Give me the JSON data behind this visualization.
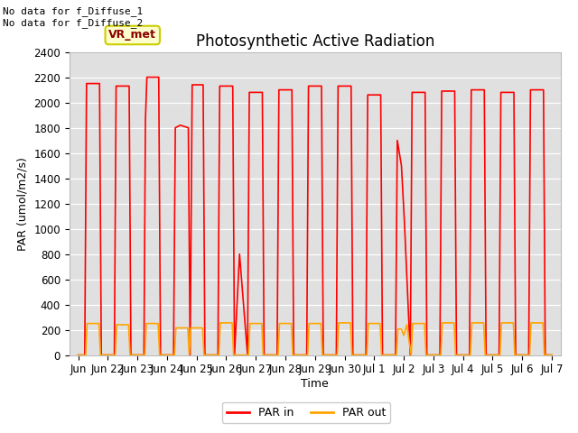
{
  "title": "Photosynthetic Active Radiation",
  "ylabel": "PAR (umol/m2/s)",
  "xlabel": "Time",
  "ylim": [
    0,
    2400
  ],
  "annotation_text": "No data for f_Diffuse_1\nNo data for f_Diffuse_2",
  "box_label": "VR_met",
  "legend_labels": [
    "PAR in",
    "PAR out"
  ],
  "par_in_color": "#ff0000",
  "par_out_color": "#ffa500",
  "background_color": "#e0e0e0",
  "title_fontsize": 12,
  "axis_fontsize": 9,
  "tick_fontsize": 8.5,
  "par_in_data": [
    [
      0,
      0
    ],
    [
      0.0,
      0
    ],
    [
      0.22,
      0
    ],
    [
      0.28,
      2150
    ],
    [
      0.72,
      2150
    ],
    [
      0.78,
      0
    ],
    [
      1.22,
      0
    ],
    [
      1.28,
      2130
    ],
    [
      1.72,
      2130
    ],
    [
      1.78,
      0
    ],
    [
      2.22,
      0
    ],
    [
      2.27,
      1860
    ],
    [
      2.32,
      2200
    ],
    [
      2.72,
      2200
    ],
    [
      2.78,
      0
    ],
    [
      3.22,
      0
    ],
    [
      3.28,
      1800
    ],
    [
      3.45,
      1820
    ],
    [
      3.72,
      1800
    ],
    [
      3.78,
      0
    ],
    [
      3.85,
      2140
    ],
    [
      4.22,
      2140
    ],
    [
      4.28,
      0
    ],
    [
      4.72,
      0
    ],
    [
      4.78,
      2130
    ],
    [
      5.22,
      2130
    ],
    [
      5.28,
      0
    ],
    [
      5.45,
      800
    ],
    [
      5.72,
      0
    ],
    [
      5.78,
      2080
    ],
    [
      6.22,
      2080
    ],
    [
      6.28,
      0
    ],
    [
      6.72,
      0
    ],
    [
      6.78,
      2100
    ],
    [
      7.22,
      2100
    ],
    [
      7.28,
      0
    ],
    [
      7.72,
      0
    ],
    [
      7.78,
      2130
    ],
    [
      8.22,
      2130
    ],
    [
      8.28,
      0
    ],
    [
      8.72,
      0
    ],
    [
      8.78,
      2130
    ],
    [
      9.22,
      2130
    ],
    [
      9.28,
      0
    ],
    [
      9.72,
      0
    ],
    [
      9.78,
      2060
    ],
    [
      10.22,
      2060
    ],
    [
      10.28,
      0
    ],
    [
      10.72,
      0
    ],
    [
      10.78,
      1700
    ],
    [
      10.92,
      1500
    ],
    [
      11.02,
      1060
    ],
    [
      11.22,
      0
    ],
    [
      11.28,
      2080
    ],
    [
      11.72,
      2080
    ],
    [
      11.78,
      0
    ],
    [
      12.22,
      0
    ],
    [
      12.28,
      2090
    ],
    [
      12.72,
      2090
    ],
    [
      12.78,
      0
    ],
    [
      13.22,
      0
    ],
    [
      13.28,
      2100
    ],
    [
      13.72,
      2100
    ],
    [
      13.78,
      0
    ],
    [
      14.22,
      0
    ],
    [
      14.28,
      2080
    ],
    [
      14.72,
      2080
    ],
    [
      14.78,
      0
    ],
    [
      15.22,
      0
    ],
    [
      15.28,
      2100
    ],
    [
      15.72,
      2100
    ],
    [
      15.78,
      0
    ],
    [
      16.0,
      0
    ]
  ],
  "par_out_data": [
    [
      0,
      0
    ],
    [
      0.25,
      0
    ],
    [
      0.3,
      250
    ],
    [
      0.7,
      250
    ],
    [
      0.75,
      0
    ],
    [
      1.25,
      0
    ],
    [
      1.3,
      240
    ],
    [
      1.7,
      240
    ],
    [
      1.75,
      0
    ],
    [
      2.25,
      0
    ],
    [
      2.3,
      250
    ],
    [
      2.7,
      250
    ],
    [
      2.75,
      0
    ],
    [
      3.25,
      0
    ],
    [
      3.3,
      215
    ],
    [
      3.7,
      215
    ],
    [
      3.75,
      0
    ],
    [
      3.8,
      215
    ],
    [
      4.2,
      215
    ],
    [
      4.25,
      0
    ],
    [
      4.75,
      0
    ],
    [
      4.8,
      255
    ],
    [
      5.2,
      255
    ],
    [
      5.25,
      0
    ],
    [
      5.75,
      0
    ],
    [
      5.8,
      250
    ],
    [
      6.2,
      250
    ],
    [
      6.25,
      0
    ],
    [
      6.75,
      0
    ],
    [
      6.8,
      250
    ],
    [
      7.2,
      250
    ],
    [
      7.25,
      0
    ],
    [
      7.75,
      0
    ],
    [
      7.8,
      250
    ],
    [
      8.2,
      250
    ],
    [
      8.25,
      0
    ],
    [
      8.75,
      0
    ],
    [
      8.8,
      255
    ],
    [
      9.2,
      255
    ],
    [
      9.25,
      0
    ],
    [
      9.75,
      0
    ],
    [
      9.8,
      250
    ],
    [
      10.2,
      250
    ],
    [
      10.25,
      0
    ],
    [
      10.75,
      0
    ],
    [
      10.8,
      205
    ],
    [
      10.92,
      205
    ],
    [
      11.0,
      155
    ],
    [
      11.1,
      240
    ],
    [
      11.25,
      0
    ],
    [
      11.3,
      250
    ],
    [
      11.7,
      250
    ],
    [
      11.75,
      0
    ],
    [
      12.25,
      0
    ],
    [
      12.3,
      255
    ],
    [
      12.7,
      255
    ],
    [
      12.75,
      0
    ],
    [
      13.25,
      0
    ],
    [
      13.3,
      255
    ],
    [
      13.7,
      255
    ],
    [
      13.75,
      0
    ],
    [
      14.25,
      0
    ],
    [
      14.3,
      255
    ],
    [
      14.7,
      255
    ],
    [
      14.75,
      0
    ],
    [
      15.25,
      0
    ],
    [
      15.3,
      255
    ],
    [
      15.7,
      255
    ],
    [
      15.75,
      0
    ],
    [
      16.0,
      0
    ]
  ],
  "x_tick_labels": [
    "Jun",
    "Jun 22",
    "Jun 23",
    "Jun 24",
    "Jun 25",
    "Jun 26",
    "Jun 27",
    "Jun 28",
    "Jun 29",
    "Jun 30",
    "Jul 1",
    "Jul 2",
    "Jul 3",
    "Jul 4",
    "Jul 5",
    "Jul 6",
    "Jul 7"
  ],
  "x_tick_positions": [
    0,
    1,
    2,
    3,
    4,
    5,
    6,
    7,
    8,
    9,
    10,
    11,
    12,
    13,
    14,
    15,
    16
  ]
}
